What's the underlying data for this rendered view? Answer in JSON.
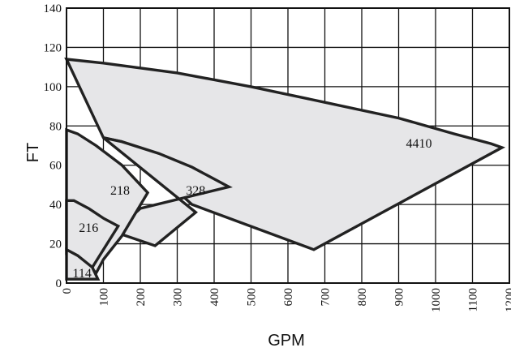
{
  "chart_data": {
    "type": "area",
    "xlabel": "GPM",
    "ylabel": "FT",
    "xlim": [
      0,
      1200
    ],
    "ylim": [
      0,
      140
    ],
    "xticks": [
      0,
      100,
      200,
      300,
      400,
      500,
      600,
      700,
      800,
      900,
      1000,
      1100,
      1200
    ],
    "yticks": [
      0,
      20,
      40,
      60,
      80,
      100,
      120,
      140
    ],
    "grid": true,
    "fill_color": "#e6e6e8",
    "line_color": "#222222",
    "regions": [
      {
        "label": "4410",
        "label_at": [
          955,
          71
        ],
        "points": [
          [
            0,
            114
          ],
          [
            100,
            112
          ],
          [
            300,
            107
          ],
          [
            500,
            100
          ],
          [
            700,
            92
          ],
          [
            900,
            84
          ],
          [
            1050,
            76
          ],
          [
            1150,
            71
          ],
          [
            1180,
            69
          ],
          [
            670,
            17
          ],
          [
            340,
            40
          ],
          [
            150,
            72
          ],
          [
            100,
            74
          ]
        ]
      },
      {
        "label": "328",
        "label_at": [
          350,
          47
        ],
        "points": [
          [
            100,
            74
          ],
          [
            150,
            72
          ],
          [
            250,
            66
          ],
          [
            340,
            59
          ],
          [
            440,
            49
          ],
          [
            200,
            38
          ],
          [
            130,
            26
          ],
          [
            240,
            19
          ],
          [
            350,
            36
          ]
        ]
      },
      {
        "label": "218",
        "label_at": [
          145,
          47
        ],
        "points": [
          [
            0,
            78
          ],
          [
            30,
            76
          ],
          [
            80,
            70
          ],
          [
            150,
            60
          ],
          [
            220,
            46
          ],
          [
            150,
            24
          ],
          [
            100,
            12
          ],
          [
            80,
            5
          ],
          [
            40,
            14
          ],
          [
            0,
            15
          ]
        ]
      },
      {
        "label": "216",
        "label_at": [
          60,
          28
        ],
        "points": [
          [
            0,
            42
          ],
          [
            20,
            42
          ],
          [
            60,
            38
          ],
          [
            100,
            33
          ],
          [
            140,
            29
          ],
          [
            70,
            8
          ],
          [
            40,
            11
          ],
          [
            0,
            17
          ]
        ]
      },
      {
        "label": "114",
        "label_at": [
          42,
          5
        ],
        "points": [
          [
            0,
            17
          ],
          [
            30,
            14
          ],
          [
            70,
            8
          ],
          [
            85,
            2
          ],
          [
            0,
            2
          ]
        ]
      }
    ]
  }
}
